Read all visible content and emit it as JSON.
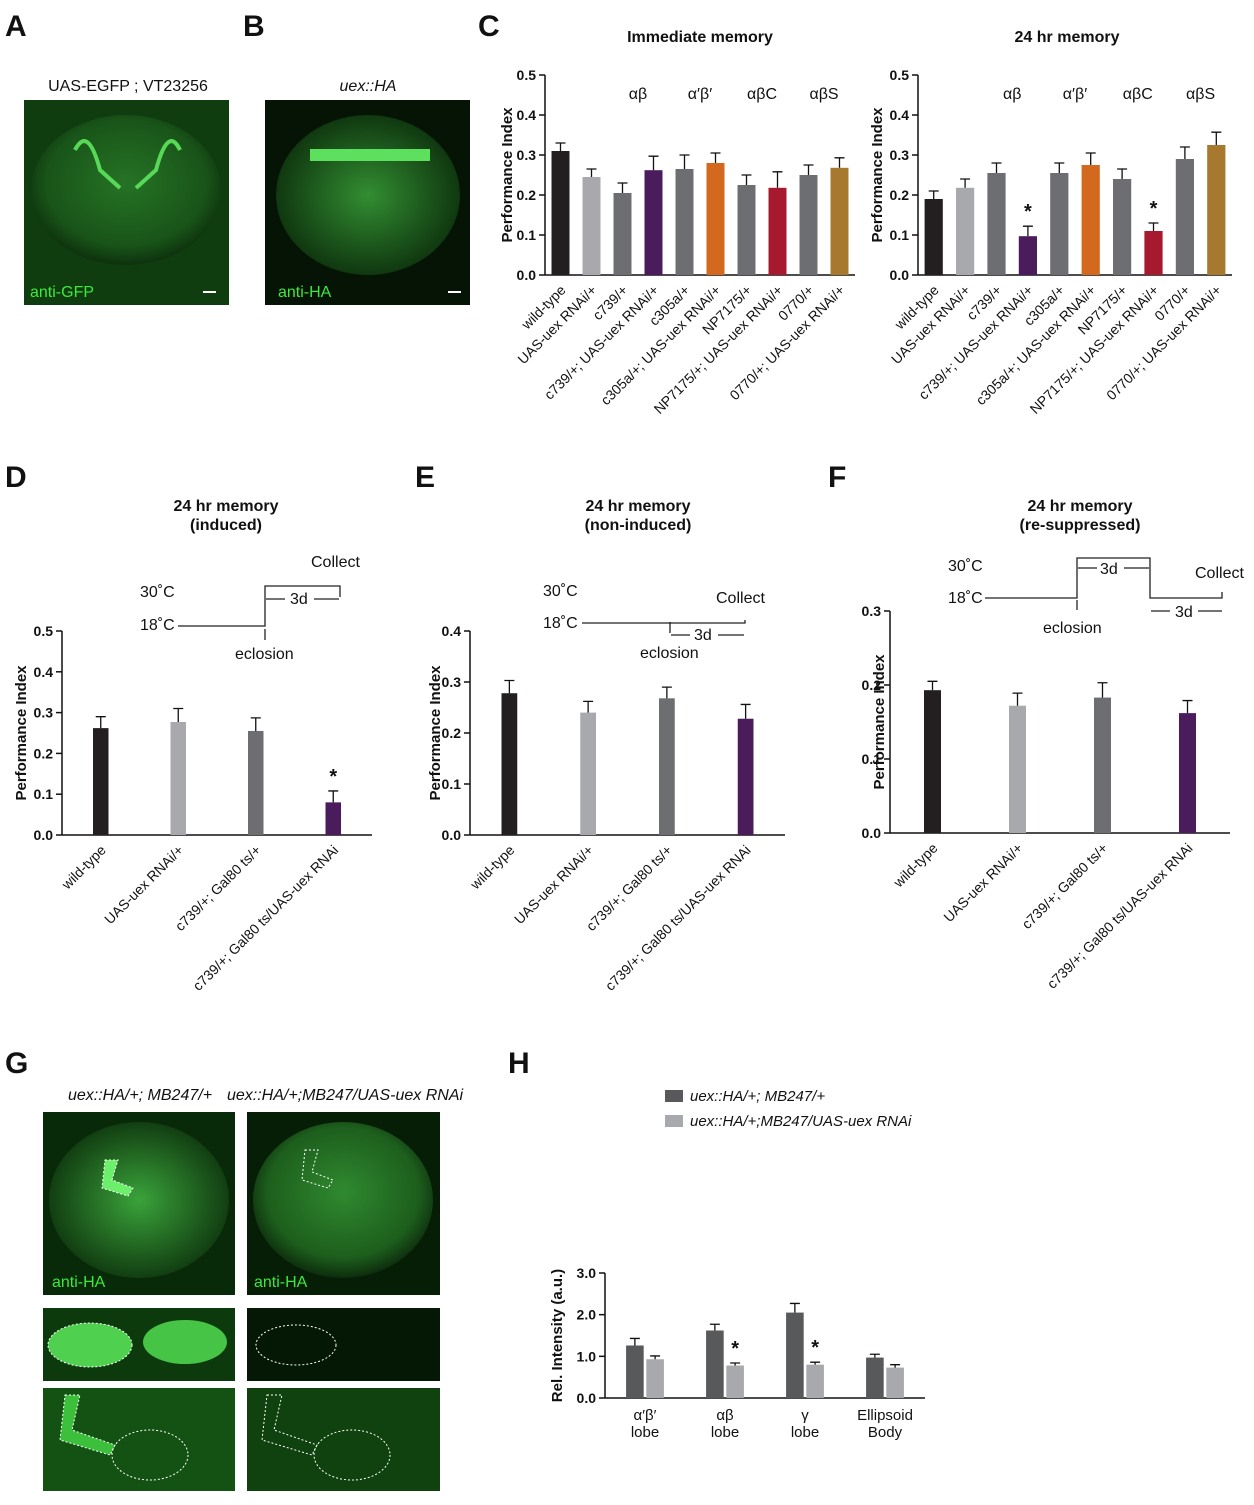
{
  "panel_labels": [
    "A",
    "B",
    "C",
    "D",
    "E",
    "F",
    "G",
    "H"
  ],
  "images": [
    {
      "title": "UAS-EGFP ; VT23256",
      "stain": "anti-GFP"
    },
    {
      "title": "uex::HA",
      "stain": "anti-HA"
    },
    {
      "title": "uex::HA/+; MB247/+",
      "stain": "anti-HA"
    },
    {
      "title": "uex::HA/+;MB247/UAS-uex RNAi",
      "stain": "anti-HA"
    }
  ],
  "chart_data": [
    {
      "type": "bar",
      "title": [
        "Immediate memory"
      ],
      "y_label": "Performance Index",
      "categories": [
        "wild-type",
        "UAS-uex RNAi/+",
        "c739/+",
        "c739/+; UAS-uex RNAi/+",
        "c305a/+",
        "c305a/+; UAS-uex RNAi/+",
        "NP7175/+",
        "NP7175/+; UAS-uex RNAi/+",
        "0770/+",
        "0770/+; UAS-uex RNAi/+"
      ],
      "values": [
        0.31,
        0.245,
        0.205,
        0.262,
        0.265,
        0.28,
        0.225,
        0.218,
        0.25,
        0.268
      ],
      "errors": [
        0.02,
        0.02,
        0.025,
        0.035,
        0.035,
        0.025,
        0.025,
        0.04,
        0.025,
        0.025
      ],
      "colors": [
        "#231f20",
        "#a7a9ac",
        "#6d6e71",
        "#4b1c5c",
        "#6d6e71",
        "#d2691e",
        "#6d6e71",
        "#a6192e",
        "#6d6e71",
        "#a6792e"
      ],
      "group_labels": [
        "αβ",
        "α′β′",
        "αβC",
        "αβS"
      ],
      "ylim": [
        0,
        0.5
      ],
      "yticks": [
        {
          "value": 0,
          "label": "0.0"
        },
        0.1,
        0.2,
        0.3,
        0.4,
        0.5
      ]
    },
    {
      "type": "bar",
      "title": [
        "24 hr memory"
      ],
      "y_label": "Performance Index",
      "categories": [
        "wild-type",
        "UAS-uex RNAi/+",
        "c739/+",
        "c739/+; UAS-uex RNAi/+",
        "c305a/+",
        "c305a/+; UAS-uex RNAi/+",
        "NP7175/+",
        "NP7175/+; UAS-uex RNAi/+",
        "0770/+",
        "0770/+; UAS-uex RNAi/+"
      ],
      "values": [
        0.19,
        0.218,
        0.255,
        0.097,
        0.255,
        0.275,
        0.24,
        0.11,
        0.29,
        0.325
      ],
      "errors": [
        0.02,
        0.022,
        0.025,
        0.025,
        0.025,
        0.03,
        0.025,
        0.02,
        0.03,
        0.032
      ],
      "colors": [
        "#231f20",
        "#a7a9ac",
        "#6d6e71",
        "#4b1c5c",
        "#6d6e71",
        "#d2691e",
        "#6d6e71",
        "#a6192e",
        "#6d6e71",
        "#a6792e"
      ],
      "group_labels": [
        "αβ",
        "α′β′",
        "αβC",
        "αβS"
      ],
      "significance": [
        null,
        null,
        null,
        "*",
        null,
        null,
        null,
        "*",
        null,
        null
      ],
      "ylim": [
        0,
        0.5
      ],
      "yticks": [
        {
          "value": 0,
          "label": "0.0"
        },
        0.1,
        0.2,
        0.3,
        0.4,
        0.5
      ]
    },
    {
      "type": "bar",
      "title": [
        "24 hr memory",
        "(induced)"
      ],
      "y_label": "Performance Index",
      "categories": [
        "wild-type",
        "UAS-uex RNAi/+",
        "c739/+; Gal80 ts/+",
        "c739/+; Gal80 ts/UAS-uex RNAi"
      ],
      "values": [
        0.262,
        0.277,
        0.255,
        0.08
      ],
      "errors": [
        0.028,
        0.033,
        0.032,
        0.028
      ],
      "colors": [
        "#231f20",
        "#a7a9ac",
        "#6d6e71",
        "#4b1c5c"
      ],
      "significance": [
        null,
        null,
        null,
        "*"
      ],
      "schematic": {
        "high": "30˚C",
        "low": "18˚C",
        "end": "Collect",
        "event": "eclosion",
        "durations": [
          "3d"
        ]
      },
      "ylim": [
        0,
        0.5
      ],
      "yticks": [
        {
          "value": 0,
          "label": "0.0"
        },
        0.1,
        0.2,
        0.3,
        0.4,
        0.5
      ]
    },
    {
      "type": "bar",
      "title": [
        "24 hr memory",
        "(non-induced)"
      ],
      "y_label": "Performance Index",
      "categories": [
        "wild-type",
        "UAS-uex RNAi/+",
        "c739/+; Gal80 ts/+",
        "c739/+; Gal80 ts/UAS-uex RNAi"
      ],
      "values": [
        0.278,
        0.24,
        0.268,
        0.228
      ],
      "errors": [
        0.025,
        0.022,
        0.022,
        0.028
      ],
      "colors": [
        "#231f20",
        "#a7a9ac",
        "#6d6e71",
        "#4b1c5c"
      ],
      "schematic": {
        "high": "30˚C",
        "low": "18˚C",
        "end": "Collect",
        "event": "eclosion",
        "durations": [
          "3d"
        ]
      },
      "ylim": [
        0,
        0.4
      ],
      "yticks": [
        {
          "value": 0,
          "label": "0.0"
        },
        0.1,
        0.2,
        0.3,
        0.4
      ]
    },
    {
      "type": "bar",
      "title": [
        "24 hr memory",
        "(re-suppressed)"
      ],
      "y_label": "Performance Index",
      "categories": [
        "wild-type",
        "UAS-uex RNAi/+",
        "c739/+; Gal80 ts/+",
        "c739/+; Gal80 ts/UAS-uex RNAi"
      ],
      "values": [
        0.193,
        0.172,
        0.183,
        0.162
      ],
      "errors": [
        0.012,
        0.017,
        0.02,
        0.017
      ],
      "colors": [
        "#231f20",
        "#a7a9ac",
        "#6d6e71",
        "#4b1c5c"
      ],
      "schematic": {
        "high": "30˚C",
        "low": "18˚C",
        "end": "Collect",
        "event": "eclosion",
        "durations": [
          "3d",
          "3d"
        ]
      },
      "ylim": [
        0,
        0.3
      ],
      "yticks": [
        {
          "value": 0,
          "label": "0.0"
        },
        0.1,
        0.2,
        0.3
      ]
    },
    {
      "type": "grouped_bar",
      "y_label": "Rel. Intensity (a.u.)",
      "categories": [
        [
          "α′β′",
          "lobe"
        ],
        [
          "αβ",
          "lobe"
        ],
        [
          "γ",
          "lobe"
        ],
        [
          "Ellipsoid",
          "Body"
        ]
      ],
      "series": [
        {
          "name": "uex::HA/+; MB247/+",
          "color": "#58595b",
          "values": [
            1.26,
            1.62,
            2.05,
            0.97
          ],
          "errors": [
            0.17,
            0.15,
            0.22,
            0.08
          ]
        },
        {
          "name": "uex::HA/+;MB247/UAS-uex RNAi",
          "color": "#a7a9ac",
          "values": [
            0.93,
            0.78,
            0.8,
            0.73
          ],
          "errors": [
            0.08,
            0.06,
            0.06,
            0.07
          ],
          "significance": [
            null,
            "*",
            "*",
            null
          ]
        }
      ],
      "ylim": [
        0,
        3
      ],
      "yticks": [
        {
          "value": 0,
          "label": "0.0"
        },
        {
          "value": 1,
          "label": "1.0"
        },
        {
          "value": 2,
          "label": "2.0"
        },
        {
          "value": 3,
          "label": "3.0"
        }
      ]
    }
  ]
}
